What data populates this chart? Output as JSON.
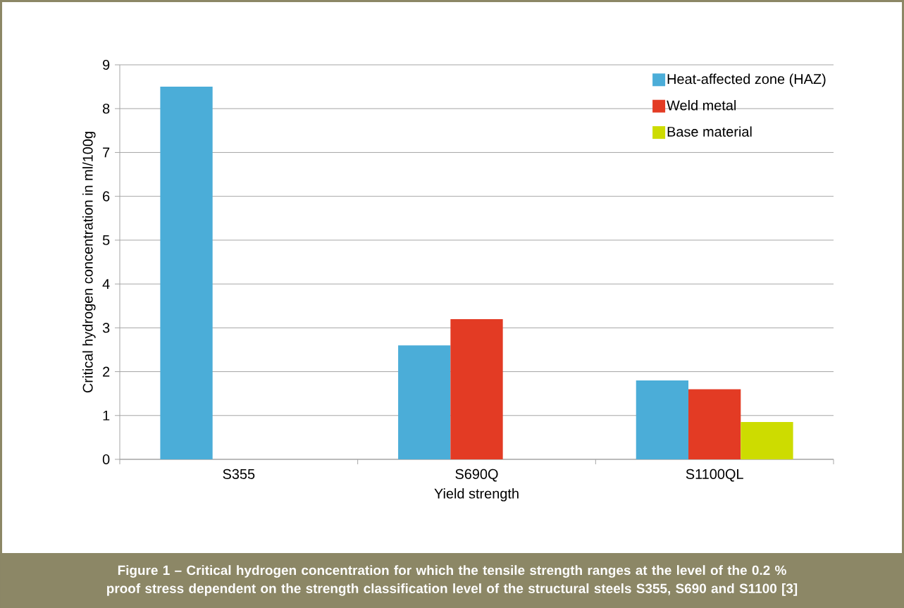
{
  "chart_data": {
    "type": "bar",
    "xlabel": "Yield strength",
    "ylabel": "Critical hydrogen concentration in  ml/100g",
    "categories": [
      "S355",
      "S690Q",
      "S1100QL"
    ],
    "series": [
      {
        "name": "Heat-affected zone (HAZ)",
        "color": "#4badd8",
        "values": [
          8.5,
          2.6,
          1.8
        ]
      },
      {
        "name": "Weld metal",
        "color": "#e33b24",
        "values": [
          null,
          3.2,
          1.6
        ]
      },
      {
        "name": "Base material",
        "color": "#cddc00",
        "values": [
          null,
          null,
          0.85
        ]
      }
    ],
    "ylim": [
      0,
      9
    ],
    "yticks": [
      0,
      1,
      2,
      3,
      4,
      5,
      6,
      7,
      8,
      9
    ],
    "grid": "y",
    "legend": "top right",
    "annotations": [
      "Figure 1 – Critical hydrogen concentration for which the tensile strength ranges at the level of the 0.2 % proof stress dependent on the strength classification level of the structural steels S355, S690 and S1100 [3]"
    ]
  }
}
